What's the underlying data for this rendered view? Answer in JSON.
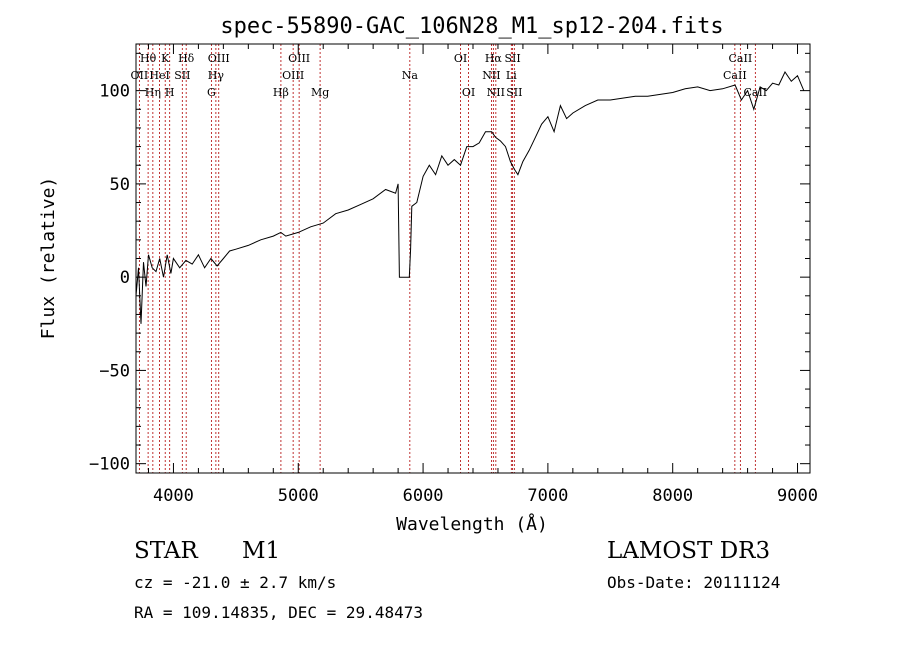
{
  "chart_data": {
    "type": "line",
    "title": "spec-55890-GAC_106N28_M1_sp12-204.fits",
    "xlabel": "Wavelength (Å)",
    "ylabel": "Flux (relative)",
    "xlim": [
      3700,
      9100
    ],
    "ylim": [
      -105,
      125
    ],
    "xticks": [
      4000,
      5000,
      6000,
      7000,
      8000,
      9000
    ],
    "yticks": [
      -100,
      -50,
      0,
      50,
      100
    ],
    "series": [
      {
        "name": "spectrum",
        "x": [
          3700,
          3720,
          3740,
          3760,
          3780,
          3800,
          3830,
          3860,
          3890,
          3920,
          3950,
          3980,
          4000,
          4050,
          4100,
          4150,
          4200,
          4250,
          4300,
          4350,
          4400,
          4450,
          4500,
          4600,
          4700,
          4800,
          4860,
          4900,
          5000,
          5100,
          5200,
          5300,
          5400,
          5500,
          5600,
          5700,
          5780,
          5800,
          5810,
          5890,
          5900,
          5910,
          5950,
          6000,
          6050,
          6100,
          6150,
          6200,
          6250,
          6300,
          6350,
          6400,
          6450,
          6500,
          6550,
          6580,
          6620,
          6660,
          6700,
          6730,
          6760,
          6800,
          6850,
          6900,
          6950,
          7000,
          7050,
          7100,
          7150,
          7200,
          7300,
          7400,
          7500,
          7600,
          7700,
          7800,
          7900,
          8000,
          8100,
          8200,
          8300,
          8400,
          8500,
          8550,
          8600,
          8650,
          8700,
          8750,
          8800,
          8850,
          8900,
          8950,
          9000,
          9050
        ],
        "y": [
          -10,
          5,
          -25,
          8,
          -5,
          12,
          5,
          3,
          10,
          0,
          12,
          2,
          10,
          5,
          9,
          7,
          12,
          5,
          10,
          6,
          10,
          14,
          15,
          17,
          20,
          22,
          24,
          22,
          24,
          27,
          29,
          34,
          36,
          39,
          42,
          47,
          45,
          50,
          0,
          0,
          15,
          38,
          40,
          54,
          60,
          55,
          65,
          60,
          63,
          60,
          70,
          70,
          72,
          78,
          78,
          75,
          73,
          70,
          62,
          58,
          55,
          62,
          68,
          75,
          82,
          86,
          78,
          92,
          85,
          88,
          92,
          95,
          95,
          96,
          97,
          97,
          98,
          99,
          101,
          102,
          100,
          101,
          103,
          95,
          100,
          90,
          102,
          100,
          104,
          103,
          110,
          105,
          108,
          100
        ]
      }
    ],
    "line_markers": [
      {
        "wl": 3727,
        "label": "OII",
        "row": 2
      },
      {
        "wl": 3797,
        "label": "Hθ",
        "row": 1
      },
      {
        "wl": 3835,
        "label": "Hη",
        "row": 3
      },
      {
        "wl": 3889,
        "label": "HeI",
        "row": 2
      },
      {
        "wl": 3934,
        "label": "K",
        "row": 1
      },
      {
        "wl": 3970,
        "label": "H",
        "row": 3
      },
      {
        "wl": 4071,
        "label": "SII",
        "row": 2
      },
      {
        "wl": 4102,
        "label": "Hδ",
        "row": 1
      },
      {
        "wl": 4304,
        "label": "G",
        "row": 3
      },
      {
        "wl": 4340,
        "label": "Hγ",
        "row": 2
      },
      {
        "wl": 4363,
        "label": "OIII",
        "row": 1
      },
      {
        "wl": 4861,
        "label": "Hβ",
        "row": 3
      },
      {
        "wl": 4959,
        "label": "OIII",
        "row": 2
      },
      {
        "wl": 5007,
        "label": "OIII",
        "row": 1
      },
      {
        "wl": 5175,
        "label": "Mg",
        "row": 3
      },
      {
        "wl": 5894,
        "label": "Na",
        "row": 2
      },
      {
        "wl": 6300,
        "label": "OI",
        "row": 1
      },
      {
        "wl": 6364,
        "label": "OI",
        "row": 3
      },
      {
        "wl": 6548,
        "label": "NII",
        "row": 2
      },
      {
        "wl": 6563,
        "label": "Hα",
        "row": 1
      },
      {
        "wl": 6583,
        "label": "NII",
        "row": 3
      },
      {
        "wl": 6707,
        "label": "Li",
        "row": 2
      },
      {
        "wl": 6717,
        "label": "SII",
        "row": 1
      },
      {
        "wl": 6731,
        "label": "SII",
        "row": 3
      },
      {
        "wl": 8498,
        "label": "CaII",
        "row": 2
      },
      {
        "wl": 8542,
        "label": "CaII",
        "row": 1
      },
      {
        "wl": 8662,
        "label": "CaII",
        "row": 3
      }
    ],
    "marker_color": "#b00000"
  },
  "info": {
    "object_class": "STAR",
    "subclass": "M1",
    "survey": "LAMOST DR3",
    "redshift": "cz = -21.0 ± 2.7 km/s",
    "obs_date": "Obs-Date: 20111124",
    "coords": "RA = 109.14835, DEC =  29.48473"
  }
}
